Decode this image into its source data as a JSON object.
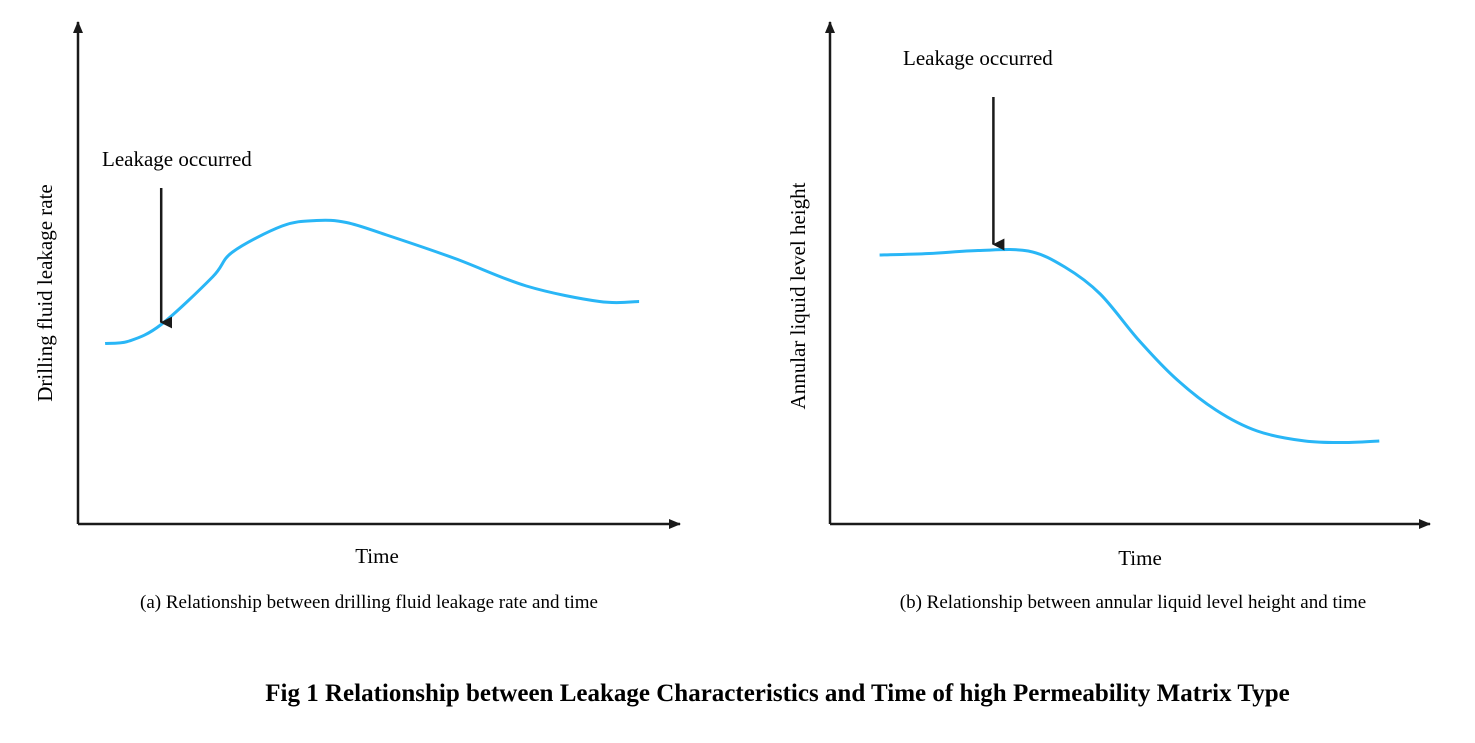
{
  "figure_caption": "Fig 1 Relationship between Leakage Characteristics and Time of high Permeability Matrix Type",
  "colors": {
    "curve": "#29B6F6",
    "axis": "#1a1a1a"
  },
  "chart_data": [
    {
      "type": "line",
      "panel": "a",
      "title": "(a) Relationship between drilling fluid leakage rate and time",
      "xlabel": "Time",
      "ylabel": "Drilling fluid leakage rate",
      "xlim": [
        0,
        100
      ],
      "ylim": [
        0,
        100
      ],
      "ticks": "none",
      "series": [
        {
          "name": "leakage rate",
          "x": [
            4.6,
            8.7,
            14.1,
            22.8,
            26.2,
            34.6,
            40.4,
            45.5,
            52.3,
            63.9,
            76.0,
            88.4,
            95.1
          ],
          "y": [
            36.1,
            36.6,
            39.9,
            49.4,
            54.4,
            59.6,
            60.7,
            60.3,
            57.8,
            53.1,
            47.6,
            44.5,
            44.5
          ]
        }
      ],
      "annotation": {
        "text": "Leakage occurred",
        "arrow_x": 14.1,
        "arrow_y": 39.9
      }
    },
    {
      "type": "line",
      "panel": "b",
      "title": "(b) Relationship between annular liquid level height and time",
      "xlabel": "Time",
      "ylabel": "Annular liquid level height",
      "xlim": [
        0,
        100
      ],
      "ylim": [
        0,
        100
      ],
      "ticks": "none",
      "series": [
        {
          "name": "annular liquid level",
          "x": [
            8.4,
            16.8,
            25.1,
            33.6,
            39.8,
            45.8,
            52.3,
            58.4,
            65.4,
            72.4,
            80.5,
            87.5,
            93.1
          ],
          "y": [
            53.8,
            54.1,
            54.7,
            54.6,
            51.4,
            46.0,
            36.8,
            29.3,
            22.8,
            18.6,
            16.6,
            16.3,
            16.6
          ]
        }
      ],
      "annotation": {
        "text": "Leakage occurred",
        "arrow_x": 27.7,
        "arrow_y": 55.5
      }
    }
  ]
}
